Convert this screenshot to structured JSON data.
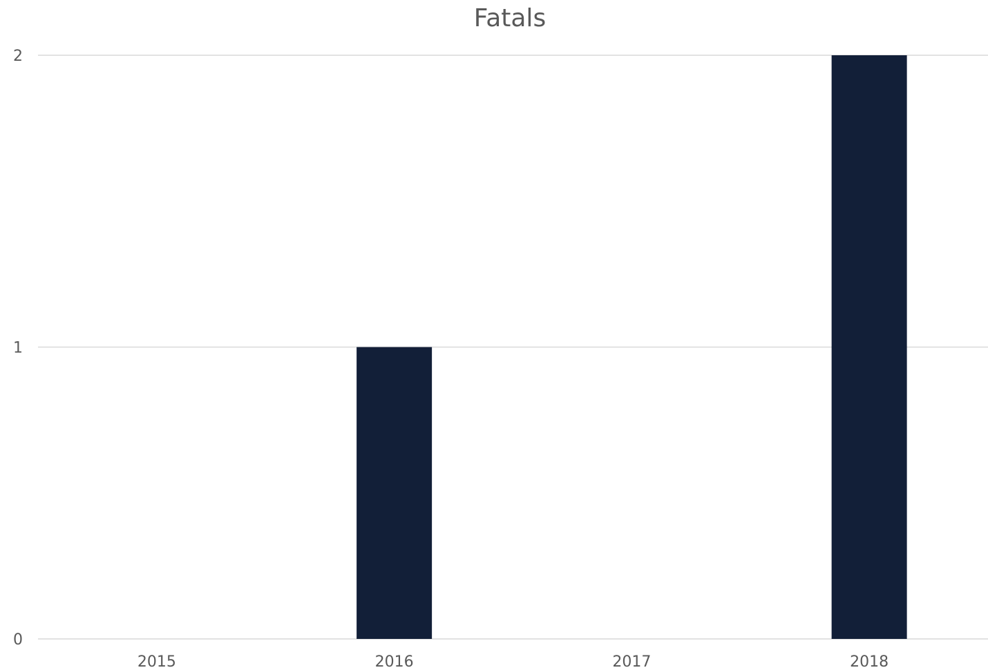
{
  "chart_data": {
    "type": "bar",
    "title": "Fatals",
    "categories": [
      "2015",
      "2016",
      "2017",
      "2018"
    ],
    "values": [
      0,
      1,
      0,
      2
    ],
    "xlabel": "",
    "ylabel": "",
    "ylim": [
      0,
      2
    ],
    "yticks": [
      0,
      1,
      2
    ],
    "grid": true,
    "legend": "none",
    "colors": {
      "bar": "#121f38",
      "gridline": "#d9d9d9",
      "text": "#595959"
    }
  }
}
